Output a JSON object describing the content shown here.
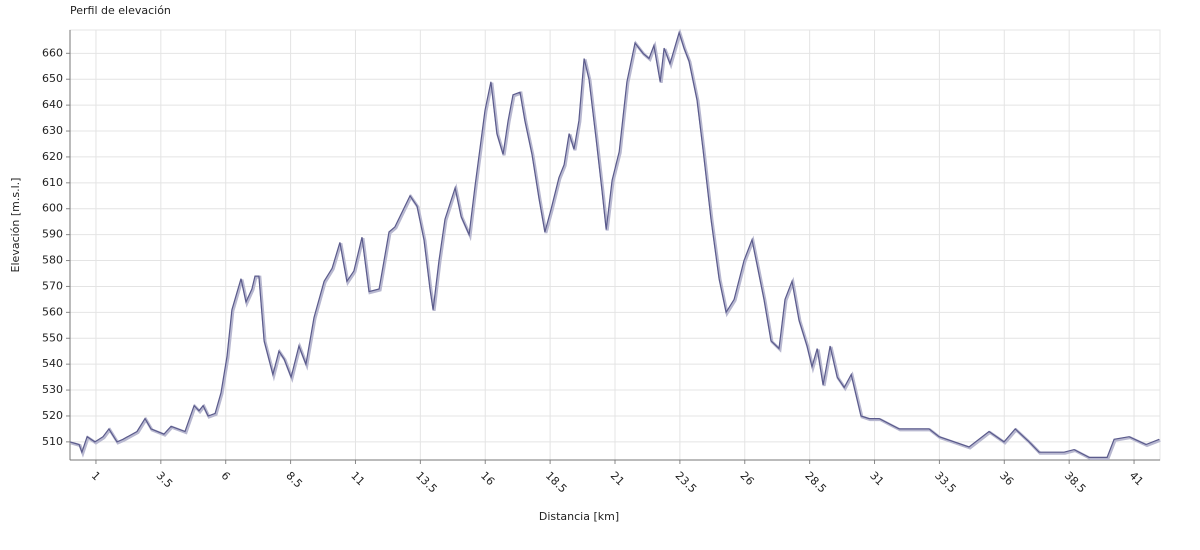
{
  "chart_data": {
    "type": "line",
    "title": "Perfil de elevación",
    "xlabel": "Distancia [km]",
    "ylabel": "Elevación [m.s.l.]",
    "color": "#5b5b8c",
    "grid": true,
    "xlim": [
      0,
      42
    ],
    "ylim": [
      503,
      669
    ],
    "xticks": [
      1,
      3.5,
      6,
      8.5,
      11,
      13.5,
      16,
      18.5,
      21,
      23.5,
      26,
      28.5,
      31,
      33.5,
      36,
      38.5,
      41
    ],
    "yticks": [
      510,
      520,
      530,
      540,
      550,
      560,
      570,
      580,
      590,
      600,
      610,
      620,
      630,
      640,
      650,
      660
    ],
    "x": [
      0,
      0.35,
      0.46,
      0.66,
      0.96,
      1.27,
      1.5,
      1.81,
      2.04,
      2.58,
      2.89,
      3.12,
      3.62,
      3.89,
      4.43,
      4.78,
      4.97,
      5.13,
      5.32,
      5.59,
      5.82,
      6.05,
      6.24,
      6.59,
      6.78,
      7.01,
      7.13,
      7.28,
      7.48,
      7.82,
      8.05,
      8.25,
      8.52,
      8.82,
      9.09,
      9.4,
      9.79,
      10.1,
      10.4,
      10.67,
      10.94,
      11.25,
      11.52,
      11.91,
      12.29,
      12.52,
      12.76,
      13.1,
      13.37,
      13.64,
      13.87,
      13.99,
      14.22,
      14.45,
      14.84,
      15.07,
      15.38,
      15.61,
      15.99,
      16.22,
      16.45,
      16.69,
      16.88,
      17.07,
      17.34,
      17.53,
      17.8,
      18.07,
      18.3,
      18.54,
      18.84,
      19.04,
      19.23,
      19.42,
      19.61,
      19.81,
      20.0,
      20.27,
      20.5,
      20.66,
      20.89,
      21.16,
      21.46,
      21.77,
      22.08,
      22.31,
      22.5,
      22.74,
      22.89,
      23.12,
      23.47,
      23.66,
      23.85,
      24.16,
      24.39,
      24.7,
      25.01,
      25.28,
      25.59,
      25.97,
      26.28,
      26.44,
      26.74,
      27.01,
      27.32,
      27.55,
      27.82,
      28.09,
      28.4,
      28.59,
      28.79,
      29.02,
      29.29,
      29.56,
      29.83,
      30.1,
      30.48,
      30.79,
      31.18,
      31.95,
      33.1,
      33.49,
      34.64,
      35.41,
      35.99,
      36.42,
      36.96,
      37.34,
      38.3,
      38.69,
      39.27,
      39.96,
      40.23,
      40.81,
      41.46,
      41.97
    ],
    "values": [
      510,
      509,
      506,
      512,
      510,
      512,
      515,
      510,
      511,
      514,
      519,
      515,
      513,
      516,
      514,
      524,
      522,
      524,
      520,
      521,
      529,
      543,
      561,
      573,
      564,
      569,
      574,
      574,
      549,
      536,
      545,
      542,
      535,
      547,
      540,
      558,
      572,
      577,
      587,
      572,
      576,
      589,
      568,
      569,
      591,
      593,
      598,
      605,
      601,
      588,
      569,
      561,
      580,
      596,
      608,
      597,
      590,
      609,
      638,
      649,
      629,
      621,
      634,
      644,
      645,
      634,
      621,
      604,
      591,
      600,
      612,
      617,
      629,
      623,
      634,
      658,
      650,
      627,
      607,
      592,
      611,
      622,
      649,
      664,
      660,
      658,
      663,
      649,
      662,
      656,
      668,
      662,
      657,
      642,
      623,
      596,
      573,
      560,
      565,
      580,
      588,
      580,
      565,
      549,
      546,
      565,
      572,
      557,
      547,
      539,
      546,
      532,
      547,
      535,
      531,
      536,
      520,
      519,
      519,
      515,
      515,
      512,
      508,
      514,
      510,
      515,
      510,
      506,
      506,
      507,
      504,
      504,
      511,
      512,
      509,
      511
    ]
  }
}
